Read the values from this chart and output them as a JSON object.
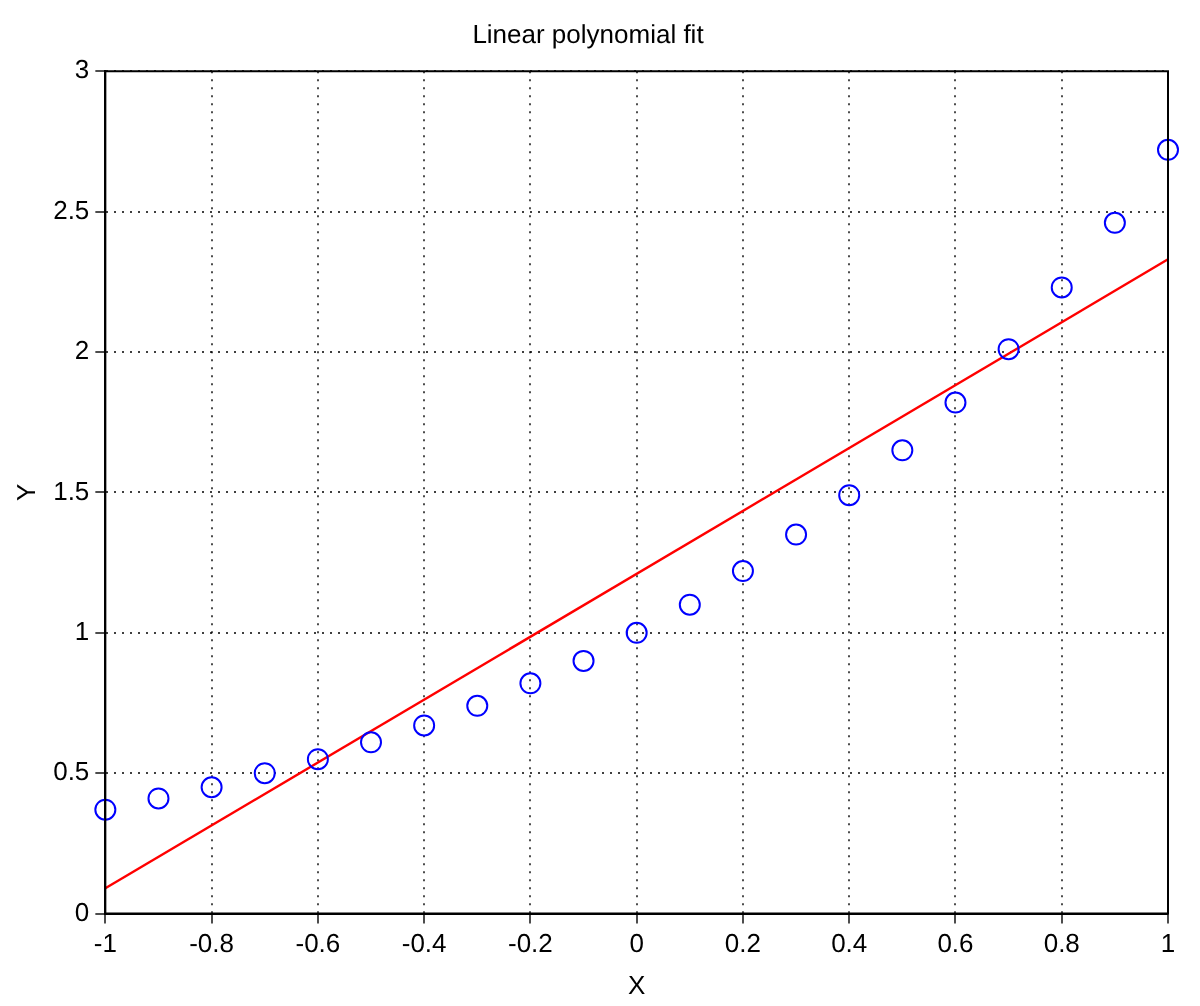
{
  "chart_data": {
    "type": "scatter",
    "title": "Linear polynomial fit",
    "xlabel": "X",
    "ylabel": "Y",
    "xlim": [
      -1,
      1
    ],
    "ylim": [
      0,
      3
    ],
    "xticks": [
      -1,
      -0.8,
      -0.6,
      -0.4,
      -0.2,
      0,
      0.2,
      0.4,
      0.6,
      0.8,
      1
    ],
    "yticks": [
      0,
      0.5,
      1,
      1.5,
      2,
      2.5,
      3
    ],
    "grid": true,
    "legend": false,
    "marker": "circle",
    "series": [
      {
        "color": "#0000ff",
        "x": [
          -1,
          -0.9,
          -0.8,
          -0.7,
          -0.6,
          -0.5,
          -0.4,
          -0.3,
          -0.2,
          -0.1,
          0,
          0.1,
          0.2,
          0.3,
          0.4,
          0.5,
          0.6,
          0.7,
          0.8,
          0.9,
          1
        ],
        "values": [
          0.37,
          0.41,
          0.45,
          0.5,
          0.55,
          0.61,
          0.67,
          0.74,
          0.82,
          0.9,
          1,
          1.1,
          1.22,
          1.35,
          1.49,
          1.65,
          1.82,
          2.01,
          2.23,
          2.46,
          2.72
        ]
      },
      {
        "type": "line",
        "color": "#ff0000",
        "line_style": "solid",
        "marker": "none",
        "x": [
          -1,
          1
        ],
        "values": [
          0.09,
          2.33
        ]
      }
    ]
  }
}
